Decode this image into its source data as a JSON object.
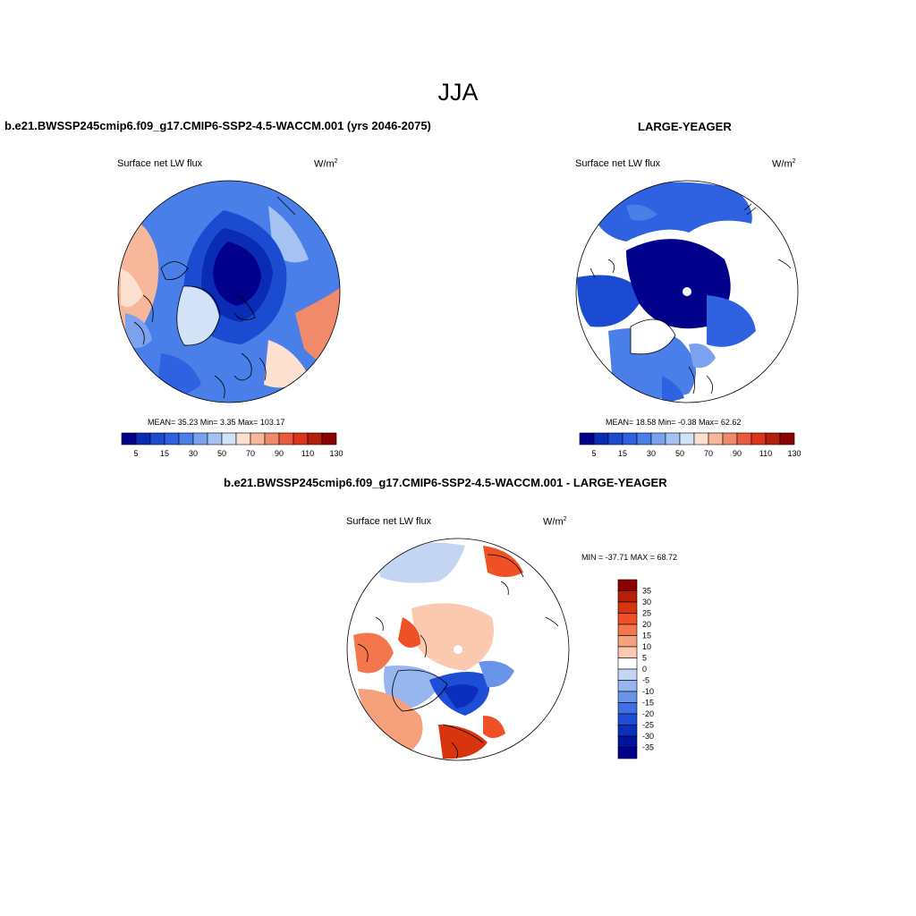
{
  "title": "JJA",
  "panels": [
    {
      "heading": "b.e21.BWSSP245cmip6.f09_g17.CMIP6-SSP2-4.5-WACCM.001 (yrs 2046-2075)",
      "variable": "Surface net LW flux",
      "units_base": "W/m",
      "units_exp": "2",
      "stats": "MEAN=  35.23  Min=   3.35  Max= 103.17",
      "colorbar": {
        "colors": [
          "#00008b",
          "#0a2bb4",
          "#1a4bd1",
          "#2e62e0",
          "#4a7ee8",
          "#7ba2ee",
          "#a6c2f2",
          "#d3e3f7",
          "#fde0cf",
          "#f7b79b",
          "#f18a6a",
          "#ea5b3e",
          "#d83519",
          "#b21f0c",
          "#8c0000"
        ],
        "labels": [
          "5",
          "15",
          "30",
          "50",
          "70",
          "90",
          "110",
          "130"
        ]
      }
    },
    {
      "heading": "LARGE-YEAGER",
      "variable": "Surface net LW flux",
      "units_base": "W/m",
      "units_exp": "2",
      "stats": "MEAN=  18.58  Min=  -0.38  Max=  62.62",
      "colorbar": {
        "colors": [
          "#00008b",
          "#0a2bb4",
          "#1a4bd1",
          "#2e62e0",
          "#4a7ee8",
          "#7ba2ee",
          "#a6c2f2",
          "#d3e3f7",
          "#fde0cf",
          "#f7b79b",
          "#f18a6a",
          "#ea5b3e",
          "#d83519",
          "#b21f0c",
          "#8c0000"
        ],
        "labels": [
          "5",
          "15",
          "30",
          "50",
          "70",
          "90",
          "110",
          "130"
        ]
      }
    },
    {
      "heading": "b.e21.BWSSP245cmip6.f09_g17.CMIP6-SSP2-4.5-WACCM.001 - LARGE-YEAGER",
      "variable": "Surface net LW flux",
      "units_base": "W/m",
      "units_exp": "2",
      "stats": "MIN = -37.71 MAX =  68.72",
      "colorbar": {
        "colors": [
          "#8c0000",
          "#b81e0a",
          "#d8350f",
          "#f05025",
          "#f3764d",
          "#f6a07c",
          "#fac9b0",
          "#ffffff",
          "#c3d5f3",
          "#97b5ef",
          "#6a93ea",
          "#3f6fe3",
          "#1f4ed6",
          "#0b2fbc",
          "#00139e",
          "#00008b"
        ],
        "labels": [
          "35",
          "30",
          "25",
          "20",
          "15",
          "10",
          "5",
          "0",
          "-5",
          "-10",
          "-15",
          "-20",
          "-25",
          "-30",
          "-35"
        ]
      }
    }
  ]
}
